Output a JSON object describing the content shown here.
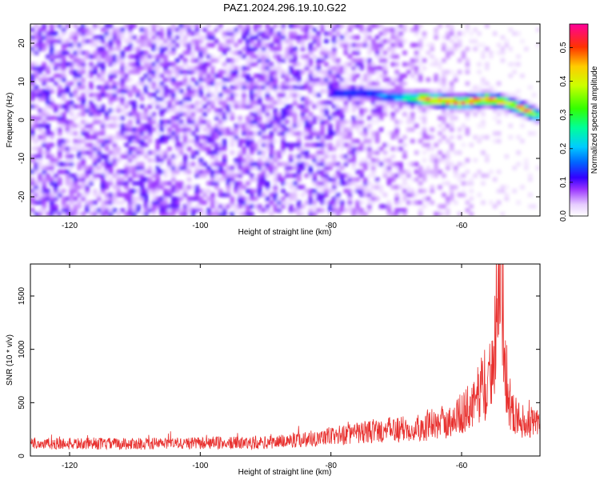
{
  "figure": {
    "title": "PAZ1.2024.296.19.10.G22"
  },
  "chart_data": [
    {
      "type": "heatmap",
      "xlabel": "Height of straight line (km)",
      "ylabel": "Frequency (Hz)",
      "xlim": [
        -126,
        -48
      ],
      "ylim": [
        -25,
        25
      ],
      "xticks": [
        -120,
        -100,
        -80,
        -60
      ],
      "yticks": [
        -20,
        -10,
        0,
        10,
        20
      ],
      "colorbar": {
        "label": "Normalized spectral amplitude",
        "range": [
          0,
          0.57
        ],
        "ticks": [
          0.0,
          0.1,
          0.2,
          0.3,
          0.4,
          0.5
        ],
        "colormap": "rainbow (white-violet-blue-cyan-green-yellow-red-magenta)"
      },
      "ridge": {
        "description_points": [
          {
            "x": -79,
            "y": 7,
            "value": 0.15
          },
          {
            "x": -75,
            "y": 7,
            "value": 0.15
          },
          {
            "x": -70,
            "y": 6,
            "value": 0.2
          },
          {
            "x": -65,
            "y": 5.5,
            "value": 0.5
          },
          {
            "x": -60,
            "y": 4.5,
            "value": 0.5
          },
          {
            "x": -56,
            "y": 5.5,
            "value": 0.5
          },
          {
            "x": -53,
            "y": 4.5,
            "value": 0.4
          },
          {
            "x": -50,
            "y": 2.5,
            "value": 0.5
          },
          {
            "x": -48,
            "y": 1,
            "value": 0.3
          }
        ]
      },
      "noise_level": 0.08
    },
    {
      "type": "line",
      "xlabel": "Height of straight line (km)",
      "ylabel": "SNR (10 * v/v)",
      "xlim": [
        -126,
        -48
      ],
      "ylim": [
        0,
        1800
      ],
      "xticks": [
        -120,
        -100,
        -80,
        -60
      ],
      "yticks": [
        0,
        500,
        1000,
        1500
      ],
      "series": [
        {
          "color": "#e8312f",
          "envelope": [
            {
              "x": -126,
              "y": 120
            },
            {
              "x": -110,
              "y": 120
            },
            {
              "x": -90,
              "y": 130
            },
            {
              "x": -82,
              "y": 180
            },
            {
              "x": -75,
              "y": 230
            },
            {
              "x": -70,
              "y": 260
            },
            {
              "x": -65,
              "y": 290
            },
            {
              "x": -62,
              "y": 330
            },
            {
              "x": -60,
              "y": 420
            },
            {
              "x": -58,
              "y": 500
            },
            {
              "x": -57,
              "y": 700
            },
            {
              "x": -56,
              "y": 600
            },
            {
              "x": -55,
              "y": 1100
            },
            {
              "x": -54.6,
              "y": 1800
            },
            {
              "x": -54.2,
              "y": 1650
            },
            {
              "x": -53.8,
              "y": 1720
            },
            {
              "x": -53.3,
              "y": 900
            },
            {
              "x": -52.5,
              "y": 450
            },
            {
              "x": -51,
              "y": 350
            },
            {
              "x": -49,
              "y": 320
            },
            {
              "x": -48,
              "y": 300
            }
          ],
          "baseline_amplitude": 70
        }
      ]
    }
  ]
}
